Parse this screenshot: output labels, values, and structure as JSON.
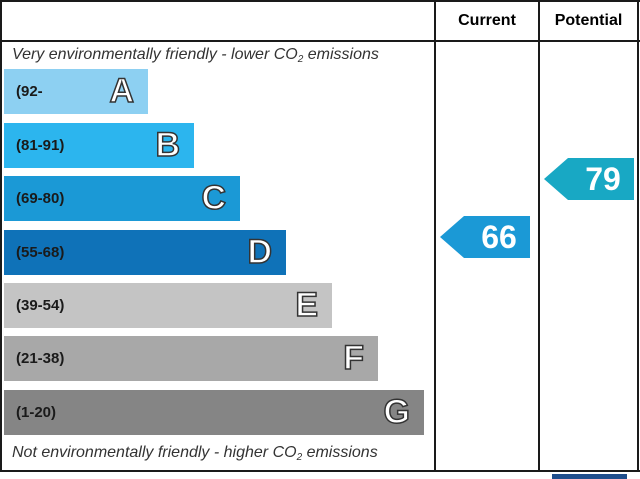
{
  "header": {
    "current_label": "Current",
    "potential_label": "Potential"
  },
  "top_note": {
    "text_before": "Very environmentally friendly - lower CO",
    "sub": "2",
    "text_after": " emissions"
  },
  "bottom_note": {
    "text_before": "Not environmentally friendly - higher CO",
    "sub": "2",
    "text_after": " emissions"
  },
  "bands": [
    {
      "range": "(92-",
      "letter": "A",
      "color": "#8dd0f2"
    },
    {
      "range": "(81-91)",
      "letter": "B",
      "color": "#2cb5ee"
    },
    {
      "range": "(69-80)",
      "letter": "C",
      "color": "#1b99d6"
    },
    {
      "range": "(55-68)",
      "letter": "D",
      "color": "#0f72b8"
    },
    {
      "range": "(39-54)",
      "letter": "E",
      "color": "#c4c4c4"
    },
    {
      "range": "(21-38)",
      "letter": "F",
      "color": "#a8a8a8"
    },
    {
      "range": "(1-20)",
      "letter": "G",
      "color": "#858585"
    }
  ],
  "ratings": {
    "current": {
      "value": "66",
      "color": "#1b99d6"
    },
    "potential": {
      "value": "79",
      "color": "#18a8c4"
    }
  }
}
